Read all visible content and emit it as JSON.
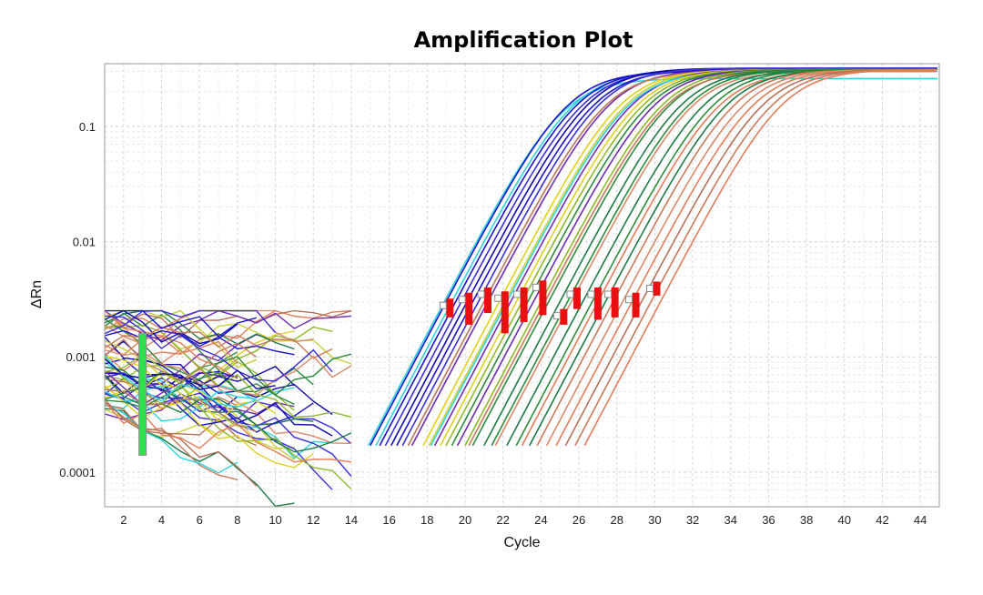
{
  "chart_data": {
    "type": "line",
    "title": "Amplification Plot",
    "xlabel": "Cycle",
    "ylabel": "ΔRn",
    "xlim": [
      1,
      45
    ],
    "ylim": [
      5e-05,
      0.35
    ],
    "yscale": "log",
    "grid": true,
    "x_ticks": [
      2,
      4,
      6,
      8,
      10,
      12,
      14,
      16,
      18,
      20,
      22,
      24,
      26,
      28,
      30,
      32,
      34,
      36,
      38,
      40,
      42,
      44
    ],
    "x_tick_labels": [
      "2",
      "4",
      "6",
      "8",
      "10",
      "12",
      "14",
      "16",
      "18",
      "20",
      "22",
      "24",
      "26",
      "28",
      "30",
      "32",
      "34",
      "36",
      "38",
      "40",
      "42",
      "44"
    ],
    "y_ticks": [
      0.0001,
      0.001,
      0.01,
      0.1
    ],
    "y_tick_labels": [
      "0.0001",
      "0.001",
      "0.01",
      "0.1"
    ],
    "threshold": 0.003,
    "baseline_start_cycle": 3,
    "series_colors": [
      "#2ed3e0",
      "#1a14c8",
      "#3a2fd9",
      "#0f0aa8",
      "#6f2bb0",
      "#e0d020",
      "#c9cf3a",
      "#8fb82a",
      "#2e8b3e",
      "#1f7a46",
      "#c97a5a",
      "#d98a6a",
      "#e27d5a",
      "#b5715a"
    ],
    "series": [
      {
        "color": "#2ed3e0",
        "ct": 18.9,
        "plateau": 0.26
      },
      {
        "color": "#2ed3e0",
        "ct": 19.3,
        "plateau": 0.3
      },
      {
        "color": "#1a14c8",
        "ct": 19.0,
        "plateau": 0.3
      },
      {
        "color": "#1a14c8",
        "ct": 19.5,
        "plateau": 0.31
      },
      {
        "color": "#3a2fd9",
        "ct": 19.8,
        "plateau": 0.31
      },
      {
        "color": "#0f0aa8",
        "ct": 20.1,
        "plateau": 0.32
      },
      {
        "color": "#1a14c8",
        "ct": 20.4,
        "plateau": 0.31
      },
      {
        "color": "#3a2fd9",
        "ct": 20.7,
        "plateau": 0.32
      },
      {
        "color": "#2ed3e0",
        "ct": 21.0,
        "plateau": 0.3
      },
      {
        "color": "#6f2bb0",
        "ct": 21.2,
        "plateau": 0.31
      },
      {
        "color": "#c97a5a",
        "ct": 21.0,
        "plateau": 0.3
      },
      {
        "color": "#e0d020",
        "ct": 21.8,
        "plateau": 0.31
      },
      {
        "color": "#c9cf3a",
        "ct": 22.1,
        "plateau": 0.31
      },
      {
        "color": "#6f2bb0",
        "ct": 22.4,
        "plateau": 0.31
      },
      {
        "color": "#2ed3e0",
        "ct": 22.2,
        "plateau": 0.3
      },
      {
        "color": "#e0d020",
        "ct": 22.7,
        "plateau": 0.31
      },
      {
        "color": "#8fb82a",
        "ct": 23.0,
        "plateau": 0.31
      },
      {
        "color": "#2e8b3e",
        "ct": 23.3,
        "plateau": 0.31
      },
      {
        "color": "#6f2bb0",
        "ct": 23.6,
        "plateau": 0.31
      },
      {
        "color": "#8fb82a",
        "ct": 24.0,
        "plateau": 0.31
      },
      {
        "color": "#2e8b3e",
        "ct": 24.4,
        "plateau": 0.31
      },
      {
        "color": "#c97a5a",
        "ct": 24.2,
        "plateau": 0.3
      },
      {
        "color": "#1f7a46",
        "ct": 25.0,
        "plateau": 0.31
      },
      {
        "color": "#2e8b3e",
        "ct": 25.4,
        "plateau": 0.31
      },
      {
        "color": "#d98a6a",
        "ct": 25.6,
        "plateau": 0.3
      },
      {
        "color": "#1f7a46",
        "ct": 26.2,
        "plateau": 0.31
      },
      {
        "color": "#2e8b3e",
        "ct": 26.7,
        "plateau": 0.31
      },
      {
        "color": "#e27d5a",
        "ct": 27.0,
        "plateau": 0.3
      },
      {
        "color": "#1f7a46",
        "ct": 27.4,
        "plateau": 0.31
      },
      {
        "color": "#c97a5a",
        "ct": 27.8,
        "plateau": 0.31
      },
      {
        "color": "#d98a6a",
        "ct": 28.3,
        "plateau": 0.31
      },
      {
        "color": "#e27d5a",
        "ct": 28.8,
        "plateau": 0.31
      },
      {
        "color": "#b5715a",
        "ct": 29.3,
        "plateau": 0.31
      },
      {
        "color": "#c97a5a",
        "ct": 29.8,
        "plateau": 0.31
      },
      {
        "color": "#e27d5a",
        "ct": 30.3,
        "plateau": 0.31
      }
    ],
    "ct_markers": [
      {
        "cycle": 19.2,
        "ybot": 0.0022,
        "ytop": 0.0032
      },
      {
        "cycle": 20.2,
        "ybot": 0.0019,
        "ytop": 0.0036
      },
      {
        "cycle": 21.2,
        "ybot": 0.0024,
        "ytop": 0.004
      },
      {
        "cycle": 22.1,
        "ybot": 0.0016,
        "ytop": 0.0037
      },
      {
        "cycle": 23.1,
        "ybot": 0.002,
        "ytop": 0.004
      },
      {
        "cycle": 24.1,
        "ybot": 0.0023,
        "ytop": 0.0046
      },
      {
        "cycle": 25.2,
        "ybot": 0.0019,
        "ytop": 0.0026
      },
      {
        "cycle": 25.9,
        "ybot": 0.0026,
        "ytop": 0.004
      },
      {
        "cycle": 27.0,
        "ybot": 0.0021,
        "ytop": 0.004
      },
      {
        "cycle": 27.9,
        "ybot": 0.0022,
        "ytop": 0.004
      },
      {
        "cycle": 29.0,
        "ybot": 0.0022,
        "ytop": 0.0036
      },
      {
        "cycle": 30.1,
        "ybot": 0.0034,
        "ytop": 0.0045
      }
    ]
  }
}
